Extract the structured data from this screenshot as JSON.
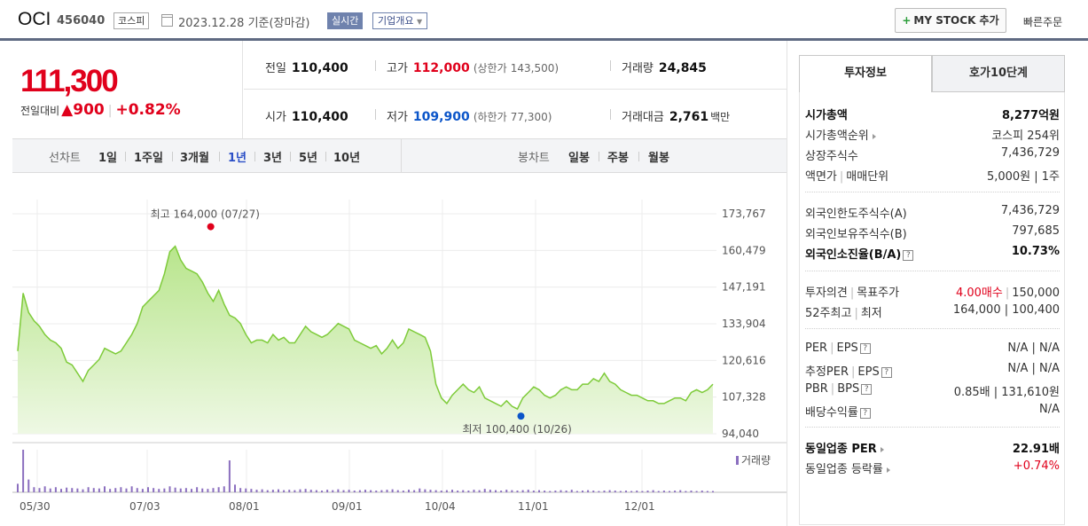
{
  "header": {
    "name": "OCI",
    "code": "456040",
    "market": "코스피",
    "date": "2023.12.28 기준(장마감)",
    "realtime": "실시간",
    "corp_info": "기업개요",
    "mystock_plus": "+",
    "mystock": "MY STOCK 추가",
    "quick_order": "빠른주문"
  },
  "quote": {
    "price": "111,300",
    "change_label": "전일대비",
    "change_value": "▲900",
    "change_pct": "+0.82%",
    "prev_label": "전일",
    "prev": "110,400",
    "high_label": "고가",
    "high": "112,000",
    "upper_label": "(상한가",
    "upper": "143,500)",
    "volume_label": "거래량",
    "volume": "24,845",
    "open_label": "시가",
    "open": "110,400",
    "low_label": "저가",
    "low": "109,900",
    "lower_label": "(하한가",
    "lower": "77,300)",
    "amount_label": "거래대금",
    "amount": "2,761",
    "amount_unit": "백만"
  },
  "chart_tabs": {
    "line_label": "선차트",
    "periods": [
      "1일",
      "1주일",
      "3개월",
      "1년",
      "3년",
      "5년",
      "10년"
    ],
    "selected": "1년",
    "candle_label": "봉차트",
    "candles": [
      "일봉",
      "주봉",
      "월봉"
    ]
  },
  "chart_data": {
    "type": "area",
    "y_ticks": [
      "173,767",
      "160,479",
      "147,191",
      "133,904",
      "120,616",
      "107,328",
      "94,040"
    ],
    "ylim": [
      94040,
      173767
    ],
    "x_ticks": [
      "05/30",
      "07/03",
      "08/01",
      "09/01",
      "10/04",
      "11/01",
      "12/01"
    ],
    "high_annotation": "최고 164,000 (07/27)",
    "low_annotation": "최저 100,400 (10/26)",
    "volume_legend": "거래량",
    "colors": {
      "line": "#7ecb3a",
      "fill_top": "#b8e58c",
      "fill_bottom": "#eef8e4",
      "volume": "#8b6fbf",
      "high": "#e0001b",
      "low": "#0b55c9"
    },
    "price": [
      124000,
      145000,
      138000,
      135000,
      133000,
      130000,
      128000,
      127000,
      125000,
      120000,
      119000,
      116000,
      113000,
      117000,
      119000,
      121000,
      125000,
      124000,
      123000,
      124000,
      127000,
      130000,
      134000,
      140000,
      142000,
      144000,
      146000,
      152000,
      160000,
      162000,
      157000,
      154000,
      153000,
      152000,
      149000,
      145000,
      142000,
      146000,
      141000,
      137000,
      136000,
      134000,
      130000,
      127000,
      128000,
      128000,
      127000,
      130000,
      128000,
      129000,
      127000,
      127000,
      130000,
      133000,
      131000,
      130000,
      129000,
      130000,
      132000,
      134000,
      133000,
      132000,
      128000,
      127000,
      126000,
      125000,
      126000,
      123000,
      125000,
      128000,
      125000,
      127000,
      132000,
      131000,
      130000,
      129000,
      124000,
      112000,
      107000,
      105000,
      108000,
      110000,
      112000,
      110000,
      109000,
      111000,
      107000,
      106000,
      105000,
      104000,
      106000,
      104000,
      103000,
      107000,
      109000,
      111000,
      110000,
      108000,
      107000,
      108000,
      110000,
      111000,
      110000,
      110000,
      112000,
      112000,
      114000,
      113000,
      116000,
      113000,
      112000,
      110000,
      109000,
      108000,
      108000,
      107000,
      106000,
      106000,
      105000,
      105000,
      106000,
      107000,
      107000,
      106000,
      109000,
      110000,
      109000,
      110000,
      112000
    ],
    "volume": [
      20,
      100,
      30,
      12,
      10,
      14,
      9,
      12,
      8,
      11,
      10,
      9,
      7,
      12,
      10,
      9,
      14,
      8,
      10,
      12,
      9,
      14,
      10,
      8,
      12,
      10,
      8,
      9,
      14,
      11,
      9,
      10,
      8,
      12,
      9,
      8,
      10,
      12,
      14,
      75,
      18,
      10,
      9,
      8,
      6,
      7,
      5,
      6,
      7,
      5,
      6,
      5,
      7,
      8,
      6,
      5,
      4,
      6,
      5,
      7,
      5,
      6,
      4,
      5,
      6,
      5,
      4,
      5,
      6,
      7,
      5,
      4,
      6,
      5,
      9,
      7,
      6,
      5,
      4,
      5,
      6,
      4,
      5,
      4,
      6,
      5,
      8,
      6,
      5,
      4,
      6,
      5,
      4,
      5,
      6,
      4,
      5,
      4,
      3,
      4,
      5,
      4,
      6,
      3,
      4,
      5,
      4,
      3,
      4,
      5,
      4,
      3,
      4,
      3,
      4,
      3,
      4,
      5,
      3,
      4,
      3,
      4,
      5,
      3,
      4,
      3,
      4,
      3,
      3
    ]
  },
  "right_panel": {
    "tabs": [
      "투자정보",
      "호가10단계"
    ],
    "rows": [
      {
        "k": "시가총액",
        "v": "8,277억원",
        "bold": true
      },
      {
        "k": "시가총액순위",
        "v": "코스피 254위",
        "arrow": true
      },
      {
        "k": "상장주식수",
        "v": "7,436,729"
      },
      {
        "k1": "액면가",
        "k2": "매매단위",
        "v": "5,000원 | 1주"
      },
      {
        "k": "외국인한도주식수(A)",
        "v": "7,436,729"
      },
      {
        "k": "외국인보유주식수(B)",
        "v": "797,685"
      },
      {
        "k": "외국인소진율(B/A)",
        "v": "10.73%",
        "bold": true,
        "help": true
      },
      {
        "k1": "투자의견",
        "k2": "목표주가",
        "v1": "4.00매수",
        "v2": "150,000"
      },
      {
        "k1": "52주최고",
        "k2": "최저",
        "v": "164,000 | 100,400"
      },
      {
        "k1": "PER",
        "k2": "EPS",
        "v": "N/A | N/A",
        "help": true
      },
      {
        "k1": "추정PER",
        "k2": "EPS",
        "v": "N/A | N/A",
        "help": true
      },
      {
        "k1": "PBR",
        "k2": "BPS",
        "v": "0.85배 | 131,610원",
        "help": true
      },
      {
        "k": "배당수익률",
        "v": "N/A",
        "help": true
      },
      {
        "k": "동일업종 PER",
        "v": "22.91배",
        "bold": true,
        "arrow": true
      },
      {
        "k": "동일업종 등락률",
        "v": "+0.74%",
        "red": true,
        "arrow": true
      }
    ]
  }
}
